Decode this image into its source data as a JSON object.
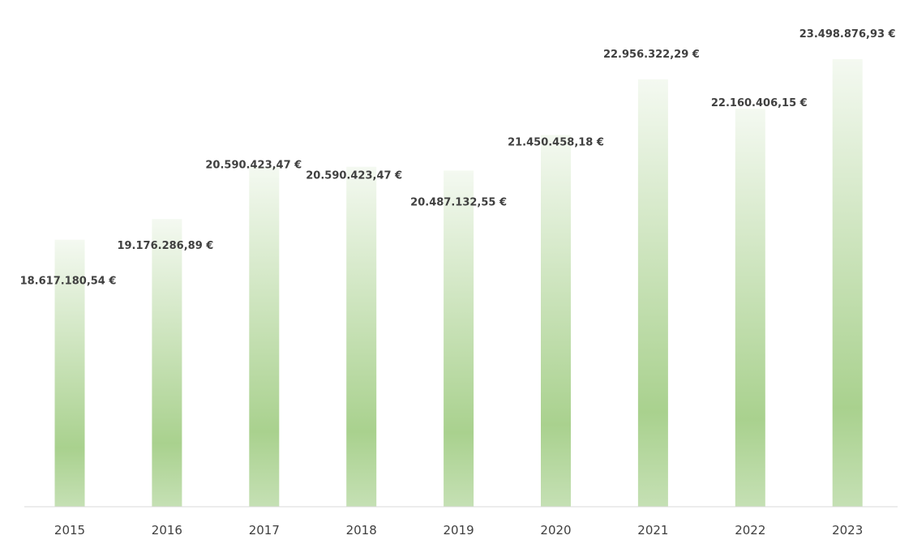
{
  "chart_data": {
    "type": "bar",
    "title": "",
    "xlabel": "",
    "ylabel": "",
    "categories": [
      "2015",
      "2016",
      "2017",
      "2018",
      "2019",
      "2020",
      "2021",
      "2022",
      "2023"
    ],
    "values": [
      18617180.54,
      19176286.89,
      20590423.47,
      20590423.47,
      20487132.55,
      21450458.18,
      22956322.29,
      22160406.15,
      23498876.93
    ],
    "data_labels": [
      "18.617.180,54 €",
      "19.176.286,89 €",
      "20.590.423,47 €",
      "20.590.423,47 €",
      "20.487.132,55 €",
      "21.450.458,18 €",
      "22.956.322,29 €",
      "22.160.406,15 €",
      "23.498.876,93 €"
    ],
    "grid": false,
    "legend": "none",
    "colors": {
      "bar_light": "#f4f9f1",
      "bar_dark": "#a9d18e",
      "axis": "#d9d9d9",
      "text": "#404040"
    }
  }
}
